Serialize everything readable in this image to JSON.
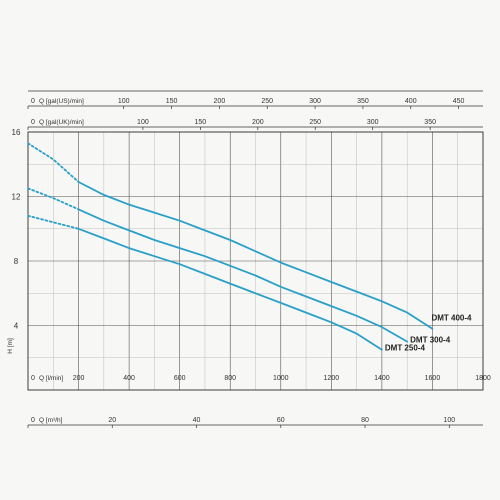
{
  "chart_data": {
    "type": "line",
    "title": "",
    "ylabel": "H [m]",
    "ylim": [
      0,
      16
    ],
    "y_ticks": [
      4,
      8,
      12,
      16
    ],
    "grid": true,
    "line_color": "#2aa0c8",
    "x_axes": [
      {
        "id": "lmin",
        "label": "Q [l/min]",
        "range": [
          0,
          1800
        ],
        "ticks": [
          0,
          200,
          400,
          600,
          800,
          1000,
          1200,
          1400,
          1600,
          1800
        ],
        "tick_labels": [
          "0",
          "200",
          "400",
          "600",
          "800",
          "1000",
          "1200",
          "1400",
          "1600",
          "1800"
        ]
      },
      {
        "id": "m3h",
        "label": "Q [m³/h]",
        "range": [
          0,
          108
        ],
        "ticks": [
          0,
          20,
          40,
          60,
          80,
          100
        ],
        "tick_labels": [
          "0",
          "20",
          "40",
          "60",
          "80",
          "100"
        ]
      },
      {
        "id": "galus",
        "label": "Q [gal(US)/min]",
        "range": [
          0,
          475.5
        ],
        "ticks": [
          0,
          100,
          150,
          200,
          250,
          300,
          350,
          400,
          450
        ],
        "tick_labels": [
          "0",
          "100",
          "150",
          "200",
          "250",
          "300",
          "350",
          "400",
          "450"
        ]
      },
      {
        "id": "galuk",
        "label": "Q [gal(UK)/min]",
        "range": [
          0,
          396
        ],
        "ticks": [
          0,
          100,
          150,
          200,
          250,
          300,
          350
        ],
        "tick_labels": [
          "0",
          "100",
          "150",
          "200",
          "250",
          "300",
          "350"
        ]
      }
    ],
    "series": [
      {
        "name": "DMT 400-4",
        "dashed": {
          "x": [
            0,
            100,
            200
          ],
          "y": [
            15.3,
            14.3,
            12.9
          ]
        },
        "solid": {
          "x": [
            200,
            300,
            400,
            500,
            600,
            700,
            800,
            900,
            1000,
            1100,
            1200,
            1300,
            1400,
            1500,
            1600
          ],
          "y": [
            12.9,
            12.1,
            11.5,
            11.0,
            10.5,
            9.9,
            9.3,
            8.6,
            7.9,
            7.3,
            6.7,
            6.1,
            5.5,
            4.8,
            3.8
          ]
        }
      },
      {
        "name": "DMT 300-4",
        "dashed": {
          "x": [
            0,
            100,
            200
          ],
          "y": [
            12.5,
            11.9,
            11.2
          ]
        },
        "solid": {
          "x": [
            200,
            300,
            400,
            500,
            600,
            700,
            800,
            900,
            1000,
            1100,
            1200,
            1300,
            1400,
            1500
          ],
          "y": [
            11.2,
            10.5,
            9.9,
            9.3,
            8.8,
            8.3,
            7.7,
            7.1,
            6.4,
            5.8,
            5.2,
            4.6,
            3.9,
            3.0
          ]
        }
      },
      {
        "name": "DMT 250-4",
        "dashed": {
          "x": [
            0,
            100,
            200
          ],
          "y": [
            10.8,
            10.4,
            10.0
          ]
        },
        "solid": {
          "x": [
            200,
            300,
            400,
            500,
            600,
            700,
            800,
            900,
            1000,
            1100,
            1200,
            1300,
            1400
          ],
          "y": [
            10.0,
            9.4,
            8.8,
            8.3,
            7.8,
            7.2,
            6.6,
            6.0,
            5.4,
            4.8,
            4.2,
            3.5,
            2.5
          ]
        }
      }
    ]
  }
}
